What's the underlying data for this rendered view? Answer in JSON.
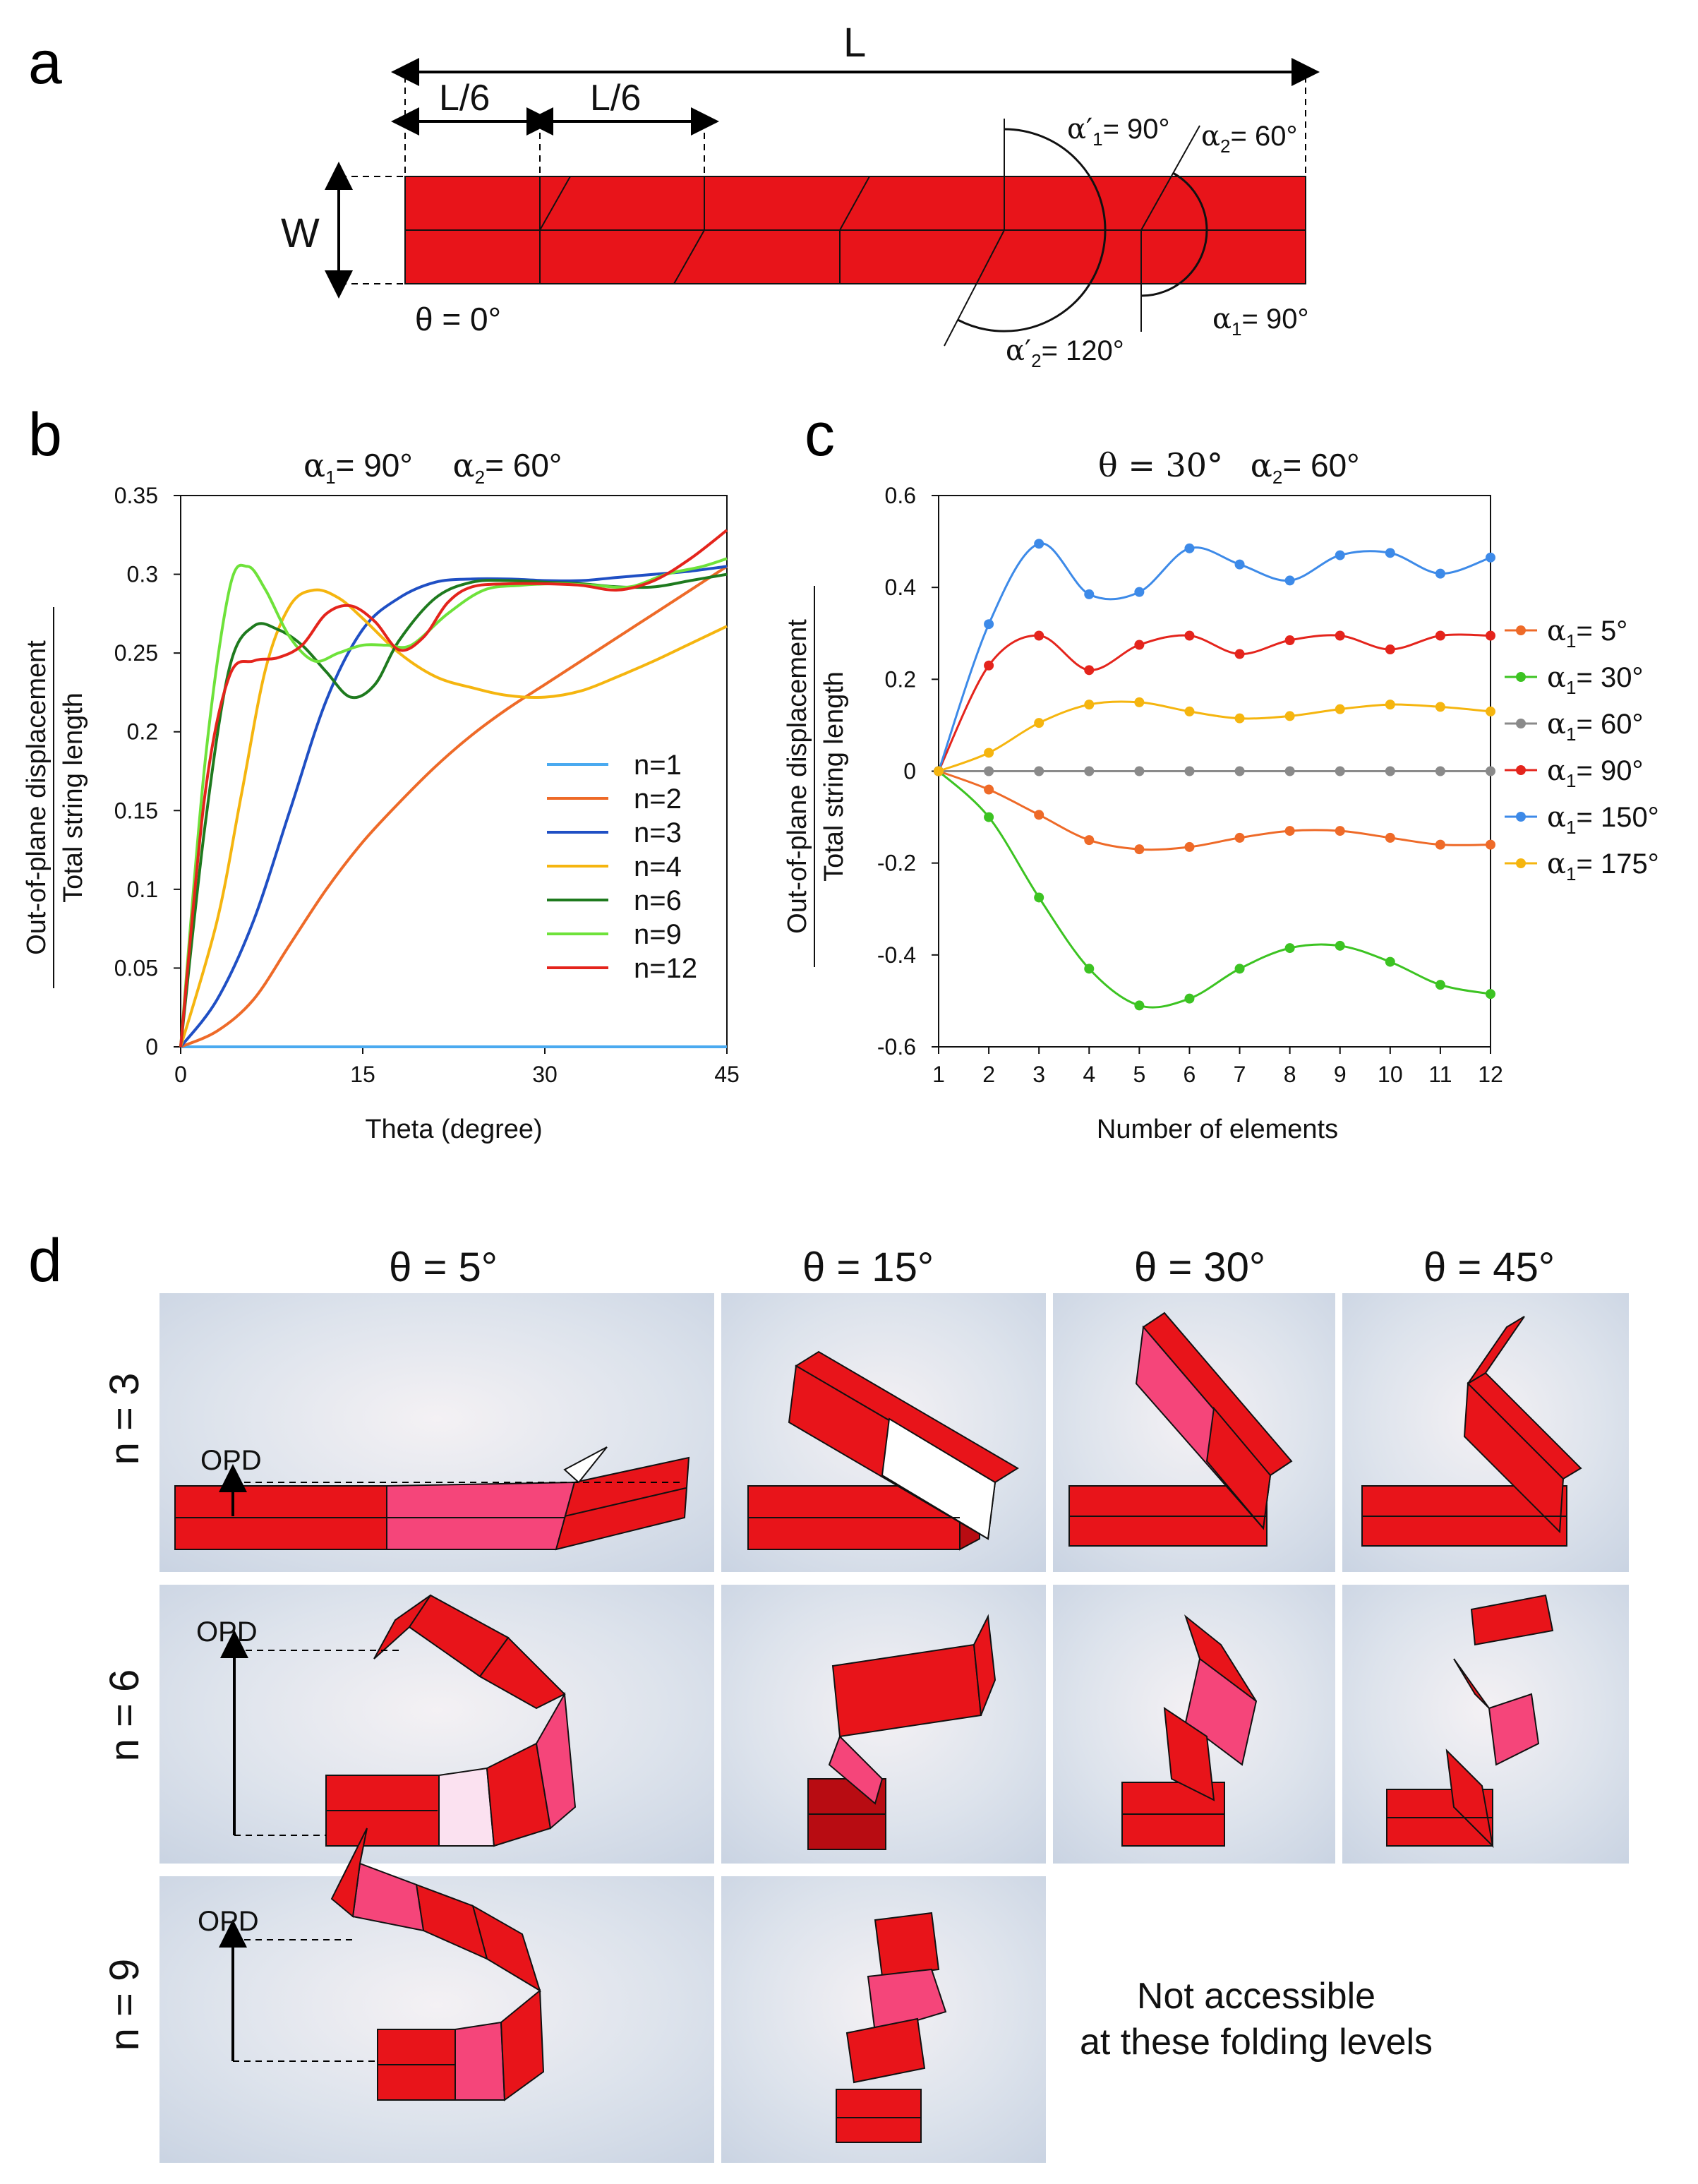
{
  "panel_labels": {
    "a": "a",
    "b": "b",
    "c": "c",
    "d": "d"
  },
  "panel_a": {
    "L": "L",
    "L6": "L/6",
    "W": "W",
    "theta": "θ = 0°",
    "alpha_p1": "= 90°",
    "alpha_p2": "= 120°",
    "alpha2": "= 60°",
    "alpha1": "= 90°",
    "alpha_sym": "α",
    "alpha_prime_sym": "α′",
    "sub1": "1",
    "sub2": "2"
  },
  "chart_data": [
    {
      "type": "line",
      "panel": "b",
      "title": "α₁= 90°   α₂= 60°",
      "title_parts": {
        "a1": "= 90°",
        "a2": "= 60°"
      },
      "xlabel": "Theta (degree)",
      "ylabel_top": "Out-of-plane displacement",
      "ylabel_bottom": "Total string length",
      "xlim": [
        0,
        45
      ],
      "ylim": [
        0,
        0.35
      ],
      "xticks": [
        "0",
        "15",
        "30",
        "45"
      ],
      "yticks": [
        "0",
        "0.05",
        "0.1",
        "0.15",
        "0.2",
        "0.25",
        "0.3",
        "0.35"
      ],
      "legend_position": "bottom-right",
      "series": [
        {
          "name": "n=1",
          "color": "#4aaaf0",
          "x": [
            0,
            45
          ],
          "values": [
            0,
            0
          ]
        },
        {
          "name": "n=2",
          "color": "#ee6a28",
          "x": [
            0,
            3,
            6,
            9,
            12,
            15,
            18,
            21,
            24,
            27,
            30,
            33,
            36,
            39,
            42,
            45
          ],
          "values": [
            0,
            0.01,
            0.03,
            0.065,
            0.1,
            0.13,
            0.155,
            0.178,
            0.198,
            0.215,
            0.23,
            0.245,
            0.26,
            0.275,
            0.29,
            0.305
          ]
        },
        {
          "name": "n=3",
          "color": "#1f4fc4",
          "x": [
            0,
            3,
            6,
            9,
            12,
            15,
            18,
            21,
            24,
            27,
            30,
            33,
            36,
            39,
            42,
            45
          ],
          "values": [
            0,
            0.03,
            0.08,
            0.15,
            0.22,
            0.265,
            0.285,
            0.295,
            0.297,
            0.297,
            0.296,
            0.296,
            0.298,
            0.3,
            0.302,
            0.305
          ]
        },
        {
          "name": "n=4",
          "color": "#f5b50f",
          "x": [
            0,
            3,
            5,
            7,
            9,
            11,
            13,
            15,
            18,
            21,
            24,
            27,
            30,
            33,
            36,
            39,
            42,
            45
          ],
          "values": [
            0,
            0.08,
            0.16,
            0.24,
            0.28,
            0.29,
            0.285,
            0.272,
            0.25,
            0.235,
            0.228,
            0.223,
            0.222,
            0.226,
            0.235,
            0.245,
            0.256,
            0.267
          ]
        },
        {
          "name": "n=6",
          "color": "#1e7a1e",
          "x": [
            0,
            2,
            4,
            6,
            8,
            10,
            12,
            14,
            16,
            18,
            21,
            24,
            27,
            30,
            33,
            36,
            39,
            42,
            45
          ],
          "values": [
            0,
            0.14,
            0.24,
            0.267,
            0.265,
            0.255,
            0.238,
            0.222,
            0.23,
            0.258,
            0.285,
            0.295,
            0.296,
            0.295,
            0.294,
            0.292,
            0.292,
            0.296,
            0.3
          ]
        },
        {
          "name": "n=9",
          "color": "#6ee23a",
          "x": [
            0,
            2,
            4,
            5.5,
            7,
            9,
            11,
            13,
            15,
            17,
            19,
            22,
            25,
            28,
            31,
            34,
            37,
            40,
            43,
            45
          ],
          "values": [
            0,
            0.18,
            0.29,
            0.305,
            0.29,
            0.26,
            0.245,
            0.25,
            0.255,
            0.255,
            0.255,
            0.275,
            0.29,
            0.293,
            0.294,
            0.293,
            0.292,
            0.3,
            0.305,
            0.31
          ]
        },
        {
          "name": "n=12",
          "color": "#e4241c",
          "x": [
            0,
            2,
            4,
            6,
            8,
            10,
            12,
            14,
            16,
            18,
            20,
            22,
            24,
            27,
            30,
            33,
            36,
            39,
            42,
            45
          ],
          "values": [
            0,
            0.16,
            0.235,
            0.245,
            0.247,
            0.255,
            0.275,
            0.28,
            0.27,
            0.252,
            0.26,
            0.282,
            0.292,
            0.294,
            0.294,
            0.293,
            0.29,
            0.296,
            0.31,
            0.328
          ]
        }
      ]
    },
    {
      "type": "line",
      "panel": "c",
      "title": "θ = 30°   α₂= 60°",
      "title_parts": {
        "theta": "θ = 30°",
        "a2": "= 60°"
      },
      "xlabel": "Number of elements",
      "ylabel_top": "Out-of-plane displacement",
      "ylabel_bottom": "Total string length",
      "xlim": [
        1,
        12
      ],
      "ylim": [
        -0.6,
        0.6
      ],
      "xticks": [
        "1",
        "2",
        "3",
        "4",
        "5",
        "6",
        "7",
        "8",
        "9",
        "10",
        "11",
        "12"
      ],
      "yticks": [
        "-0.6",
        "-0.4",
        "-0.2",
        "0",
        "0.2",
        "0.4",
        "0.6"
      ],
      "legend_position": "right",
      "categories": [
        1,
        2,
        3,
        4,
        5,
        6,
        7,
        8,
        9,
        10,
        11,
        12
      ],
      "series": [
        {
          "name": "= 5°",
          "color": "#ee6a28",
          "values": [
            0,
            -0.04,
            -0.095,
            -0.15,
            -0.17,
            -0.165,
            -0.145,
            -0.13,
            -0.13,
            -0.145,
            -0.16,
            -0.16
          ]
        },
        {
          "name": "= 30°",
          "color": "#3cc322",
          "values": [
            0,
            -0.1,
            -0.275,
            -0.43,
            -0.51,
            -0.495,
            -0.43,
            -0.385,
            -0.38,
            -0.415,
            -0.465,
            -0.485
          ]
        },
        {
          "name": "= 60°",
          "color": "#8a8a8a",
          "values": [
            0,
            0,
            0,
            0,
            0,
            0,
            0,
            0,
            0,
            0,
            0,
            0
          ]
        },
        {
          "name": "= 90°",
          "color": "#e4241c",
          "values": [
            0,
            0.23,
            0.295,
            0.22,
            0.275,
            0.295,
            0.255,
            0.285,
            0.295,
            0.265,
            0.295,
            0.295
          ]
        },
        {
          "name": "= 150°",
          "color": "#3d8ae8",
          "values": [
            0,
            0.32,
            0.495,
            0.385,
            0.39,
            0.485,
            0.45,
            0.415,
            0.47,
            0.475,
            0.43,
            0.465
          ]
        },
        {
          "name": "= 175°",
          "color": "#f5b50f",
          "values": [
            0,
            0.04,
            0.105,
            0.145,
            0.15,
            0.13,
            0.115,
            0.12,
            0.135,
            0.145,
            0.14,
            0.13
          ]
        }
      ]
    }
  ],
  "panel_d": {
    "col_headers": [
      "θ = 5°",
      "θ = 15°",
      "θ = 30°",
      "θ = 45°"
    ],
    "row_headers": [
      "n = 3",
      "n = 6",
      "n = 9"
    ],
    "opd": "OPD",
    "na_line1": "Not accessible",
    "na_line2": "at these folding levels"
  },
  "colors": {
    "strip_red": "#e8141a",
    "strip_pink": "#f5457a",
    "line": "#111111"
  }
}
